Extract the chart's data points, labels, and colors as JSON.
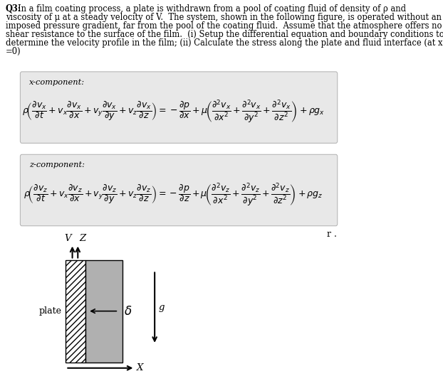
{
  "background_color": "#ffffff",
  "fig_width": 6.22,
  "fig_height": 5.43,
  "eq_box_color": "#e8e8e8",
  "x_component_label": "x-component:",
  "z_component_label": "z-component:",
  "x_eq": "$\\rho\\!\\left(\\dfrac{\\partial v_x}{\\partial t}+v_x\\dfrac{\\partial v_x}{\\partial x}+v_y\\dfrac{\\partial v_x}{\\partial y}+v_z\\dfrac{\\partial v_x}{\\partial z}\\right)=-\\dfrac{\\partial p}{\\partial x}+\\mu\\!\\left(\\dfrac{\\partial^2 v_x}{\\partial x^2}+\\dfrac{\\partial^2 v_x}{\\partial y^2}+\\dfrac{\\partial^2 v_x}{\\partial z^2}\\right)+\\rho g_x$",
  "z_eq": "$\\rho\\!\\left(\\dfrac{\\partial v_z}{\\partial t}+v_x\\dfrac{\\partial v_z}{\\partial x}+v_y\\dfrac{\\partial v_z}{\\partial y}+v_z\\dfrac{\\partial v_z}{\\partial z}\\right)=-\\dfrac{\\partial p}{\\partial z}+\\mu\\!\\left(\\dfrac{\\partial^2 v_z}{\\partial x^2}+\\dfrac{\\partial^2 v_z}{\\partial y^2}+\\dfrac{\\partial^2 v_z}{\\partial z^2}\\right)+\\rho g_z$",
  "r_note": "r .",
  "plate_label": "plate",
  "delta_label": "$\\delta$",
  "g_label": "g",
  "V_label": "V",
  "Z_label": "Z",
  "X_label": "X",
  "line1_bold": "Q3:",
  "line1_rest": "In a film coating process, a plate is withdrawn from a pool of coating fluid of density of ρ and",
  "line2": "viscosity of μ at a steady velocity of V.  The system, shown in the following figure, is operated without an",
  "line3": "imposed pressure gradient, far from the pool of the coating fluid.  Assume that the atmosphere offers no",
  "line4": "shear resistance to the surface of the film.  (i) Setup the differential equation and boundary conditions to",
  "line5": "determine the velocity profile in the film; (ii) Calculate the stress along the plate and fluid interface (at x",
  "line6": "=0)"
}
